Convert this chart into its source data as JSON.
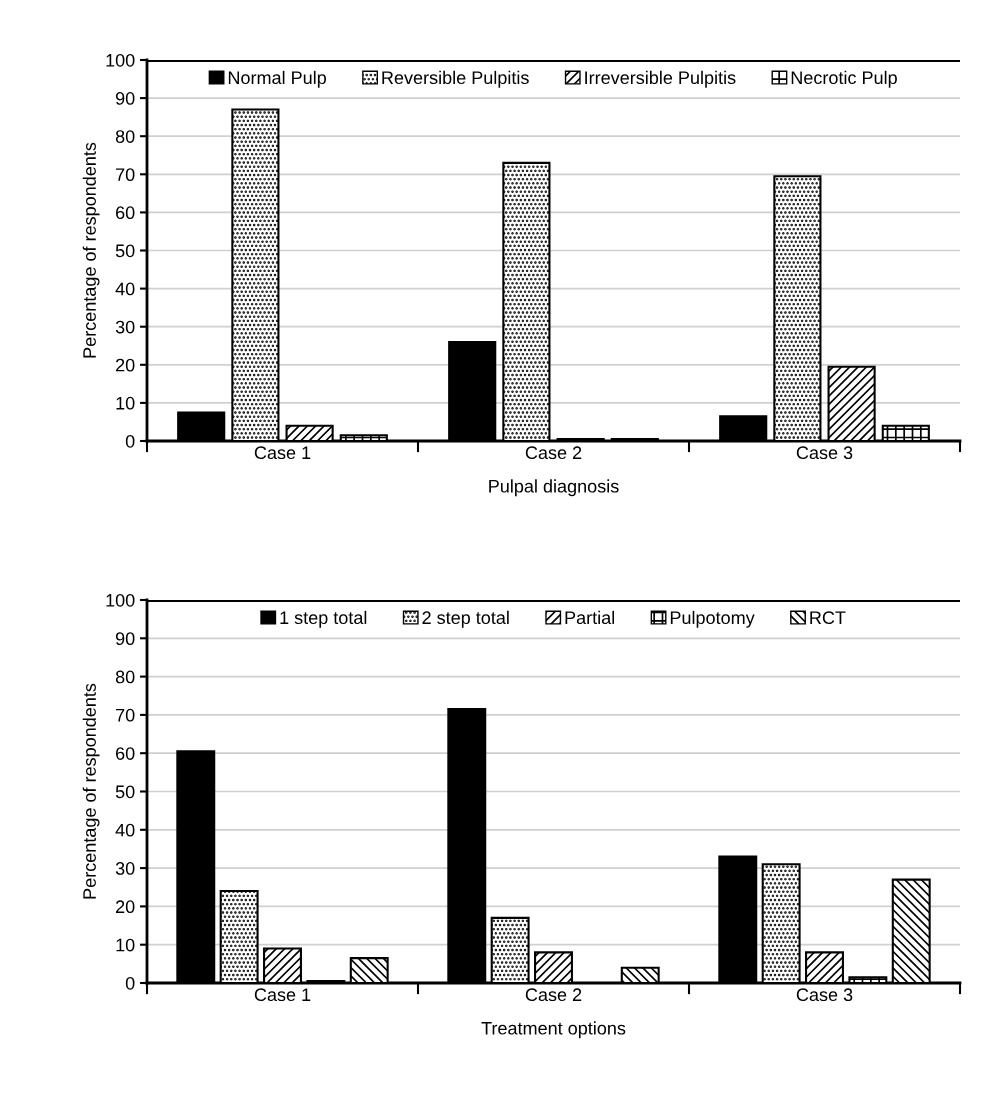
{
  "chart_data": [
    {
      "type": "bar",
      "xlabel": "Pulpal diagnosis",
      "ylabel": "Percentage of respondents",
      "categories": [
        "Case 1",
        "Case 2",
        "Case 3"
      ],
      "ylim": [
        0,
        100
      ],
      "yticks": [
        0,
        10,
        20,
        30,
        40,
        50,
        60,
        70,
        80,
        90,
        100
      ],
      "grid": "y",
      "legend": "top",
      "series": [
        {
          "name": "Normal Pulp",
          "color": "#000000",
          "values": [
            7.5,
            26,
            6.5
          ]
        },
        {
          "name": "Reversible Pulpitis",
          "color": "#000000",
          "values": [
            87,
            73,
            69.5
          ]
        },
        {
          "name": "Irreversible Pulpitis",
          "color": "#000000",
          "values": [
            4,
            0.5,
            19.5
          ]
        },
        {
          "name": "Necrotic Pulp",
          "color": "#000000",
          "values": [
            1.5,
            0.5,
            4
          ]
        }
      ]
    },
    {
      "type": "bar",
      "xlabel": "Treatment options",
      "ylabel": "Percentage of respondents",
      "categories": [
        "Case 1",
        "Case 2",
        "Case 3"
      ],
      "ylim": [
        0,
        100
      ],
      "yticks": [
        0,
        10,
        20,
        30,
        40,
        50,
        60,
        70,
        80,
        90,
        100
      ],
      "grid": "y",
      "legend": "top",
      "series": [
        {
          "name": "1 step total",
          "color": "#000000",
          "values": [
            60.5,
            71.5,
            33
          ]
        },
        {
          "name": "2 step total",
          "color": "#000000",
          "values": [
            24,
            17,
            31
          ]
        },
        {
          "name": "Partial",
          "color": "#000000",
          "values": [
            9,
            8,
            8
          ]
        },
        {
          "name": "Pulpotomy",
          "color": "#000000",
          "values": [
            0.5,
            0,
            1.5
          ]
        },
        {
          "name": "RCT",
          "color": "#000000",
          "values": [
            6.5,
            4,
            27
          ]
        }
      ]
    }
  ]
}
